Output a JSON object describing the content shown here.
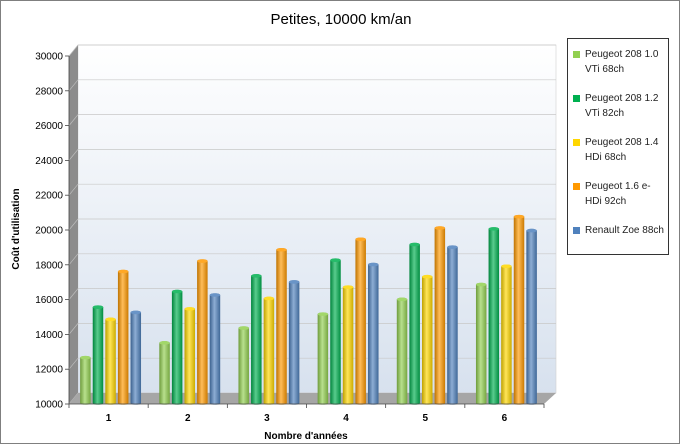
{
  "chart_data": {
    "type": "bar",
    "title": "Petites, 10000 km/an",
    "xlabel": "Nombre d'années",
    "ylabel": "Coût d'utilisation",
    "categories": [
      "1",
      "2",
      "3",
      "4",
      "5",
      "6"
    ],
    "ylim": [
      10000,
      30000
    ],
    "yticks": [
      "10000",
      "12000",
      "14000",
      "16000",
      "18000",
      "20000",
      "22000",
      "24000",
      "26000",
      "28000",
      "30000"
    ],
    "grid": true,
    "legend_position": "right",
    "series": [
      {
        "name": "Peugeot 208 1.0 VTi 68ch",
        "color": "#92d050",
        "values": [
          12550,
          13400,
          14250,
          15050,
          15900,
          16750
        ]
      },
      {
        "name": "Peugeot 208 1.2 VTi 82ch",
        "color": "#00b050",
        "values": [
          15450,
          16350,
          17250,
          18150,
          19050,
          19950
        ]
      },
      {
        "name": "Peugeot 208 1.4 HDi 68ch",
        "color": "#ffd700",
        "values": [
          14750,
          15350,
          15950,
          16600,
          17200,
          17800
        ]
      },
      {
        "name": "Peugeot 1.6 e-HDi 92ch",
        "color": "#ff9900",
        "values": [
          17500,
          18100,
          18750,
          19350,
          20000,
          20650
        ]
      },
      {
        "name": "Renault Zoe 88ch",
        "color": "#4f81bd",
        "values": [
          15150,
          16150,
          16900,
          17900,
          18900,
          19850
        ]
      }
    ]
  }
}
